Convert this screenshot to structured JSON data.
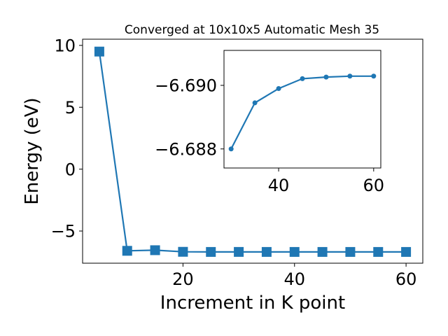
{
  "chart_data": [
    {
      "type": "line",
      "title": "Converged at 10x10x5 Automatic Mesh 35",
      "xlabel": "Increment in K point",
      "ylabel": "Energy (eV)",
      "xlim": [
        2,
        63
      ],
      "ylim": [
        -7.6,
        10.5
      ],
      "xticks": [
        20,
        40,
        60
      ],
      "xtick_labels": [
        "20",
        "40",
        "60"
      ],
      "yticks": [
        10,
        5,
        0,
        -5
      ],
      "ytick_labels": [
        "10",
        "5",
        "0",
        "−5"
      ],
      "grid": false,
      "marker": "square",
      "color": "#1f77b4",
      "series": [
        {
          "x": [
            5,
            10,
            15,
            20,
            25,
            30,
            35,
            40,
            45,
            50,
            55,
            60
          ],
          "values": [
            9.5,
            -6.6,
            -6.55,
            -6.68,
            -6.69,
            -6.688,
            -6.6895,
            -6.6899,
            -6.6902,
            -6.6903,
            -6.6904,
            -6.6904
          ]
        }
      ]
    },
    {
      "type": "line",
      "title": "",
      "xlabel": "",
      "ylabel": "",
      "xlim": [
        28.5,
        61.5
      ],
      "ylim": [
        -6.6874,
        -6.6911
      ],
      "inverted_y": true,
      "xticks": [
        40,
        60
      ],
      "xtick_labels": [
        "40",
        "60"
      ],
      "yticks": [
        -6.69,
        -6.688
      ],
      "ytick_labels": [
        "−6.690",
        "−6.688"
      ],
      "grid": false,
      "marker": "circle",
      "color": "#1f77b4",
      "series": [
        {
          "x": [
            30,
            35,
            40,
            45,
            50,
            55,
            60
          ],
          "values": [
            -6.688,
            -6.68945,
            -6.6899,
            -6.69021,
            -6.69026,
            -6.69029,
            -6.69029
          ]
        }
      ]
    }
  ]
}
